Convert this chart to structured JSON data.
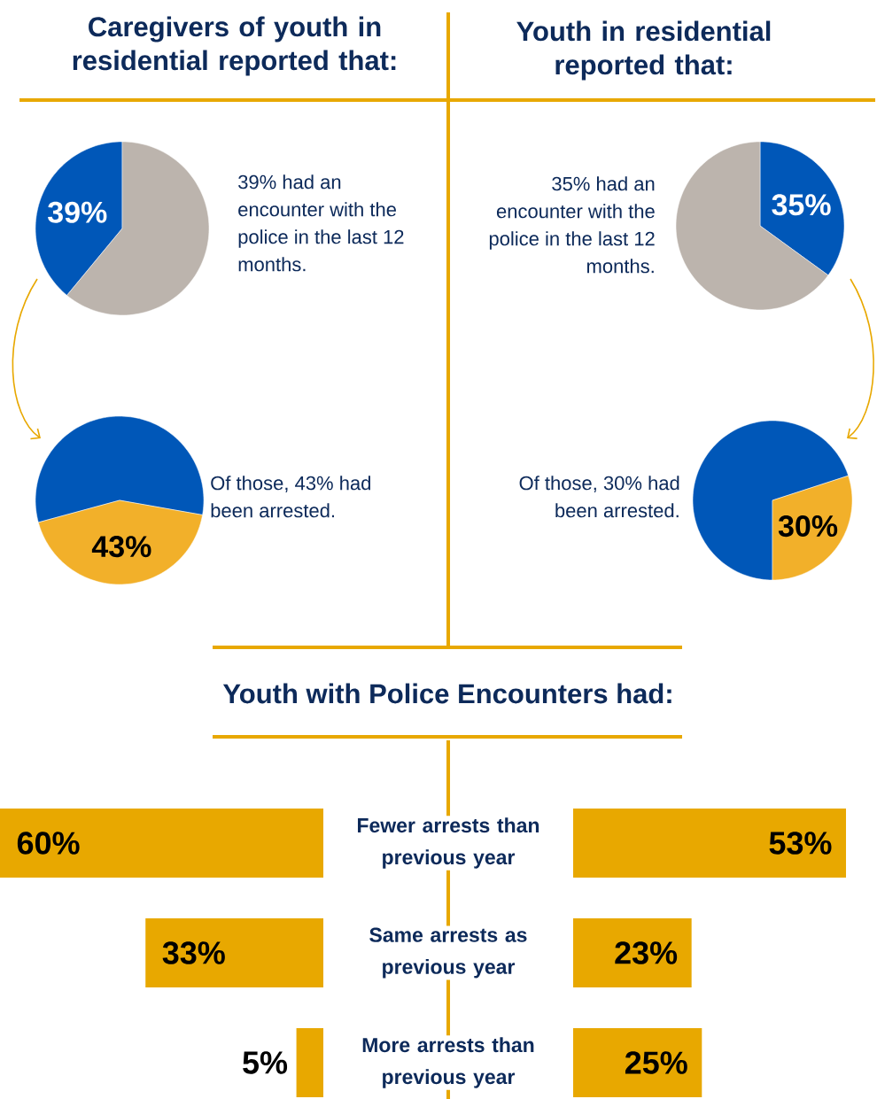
{
  "chart_data": [
    {
      "type": "pie",
      "title": "Caregivers of youth in residential reported that:",
      "categories": [
        null,
        null
      ],
      "values": [
        39,
        61
      ],
      "colors": [
        "#0057b8",
        "#bcb4ad"
      ],
      "value_labels": [
        "39%",
        null
      ],
      "annotations": [
        "39% had an encounter with the police in the last 12 months."
      ]
    },
    {
      "type": "pie",
      "title": "Youth in residential reported that:",
      "categories": [
        null,
        null
      ],
      "values": [
        35,
        65
      ],
      "colors": [
        "#0057b8",
        "#bcb4ad"
      ],
      "value_labels": [
        "35%",
        null
      ],
      "annotations": [
        "35% had an encounter with the police in the last 12 months."
      ]
    },
    {
      "type": "pie",
      "categories": [
        null,
        null
      ],
      "values": [
        57,
        43
      ],
      "colors": [
        "#0057b8",
        "#f2b02a"
      ],
      "value_labels": [
        null,
        "43%"
      ],
      "annotations": [
        "Of those, 43% had been arrested."
      ]
    },
    {
      "type": "pie",
      "categories": [
        null,
        null
      ],
      "values": [
        70,
        30
      ],
      "colors": [
        "#0057b8",
        "#f2b02a"
      ],
      "value_labels": [
        null,
        "30%"
      ],
      "annotations": [
        "Of those, 30% had been arrested."
      ]
    },
    {
      "type": "bar",
      "orientation": "horizontal",
      "title": "Youth with Police Encounters had:",
      "categories": [
        "Fewer arrests than previous year",
        "Same arrests as previous year",
        "More arrests than previous year"
      ],
      "values": [
        60,
        33,
        5
      ],
      "value_labels": [
        "60%",
        "33%",
        "5%"
      ],
      "color": "#e8a800",
      "xlim": [
        60,
        0
      ],
      "tick_labels": "y"
    },
    {
      "type": "bar",
      "orientation": "horizontal",
      "categories": [
        null,
        null,
        null
      ],
      "values": [
        53,
        23,
        25
      ],
      "value_labels": [
        "53%",
        "23%",
        "25%"
      ],
      "color": "#e8a800",
      "tick_labels": false
    }
  ]
}
